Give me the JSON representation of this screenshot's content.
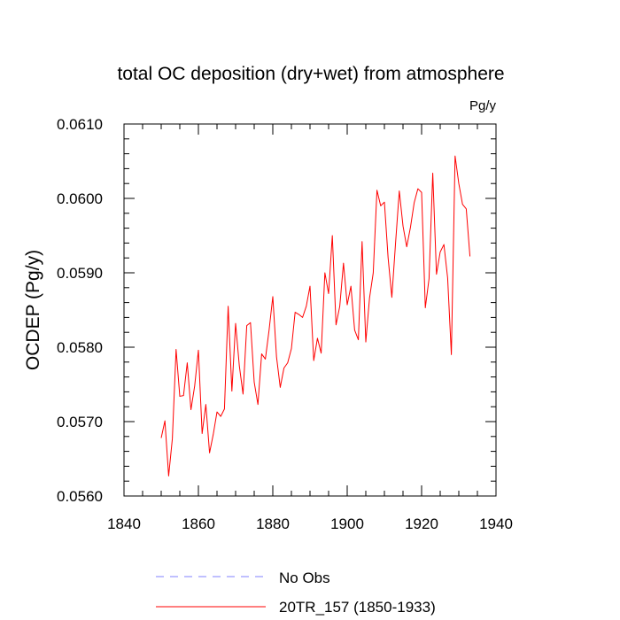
{
  "chart_data": {
    "type": "line",
    "title": "total OC deposition (dry+wet) from atmosphere",
    "units_label": "Pg/y",
    "xlabel": "",
    "ylabel": "OCDEP  (Pg/y)",
    "xlim": [
      1840,
      1940
    ],
    "ylim": [
      0.056,
      0.061
    ],
    "x_ticks": [
      1840,
      1860,
      1880,
      1900,
      1920,
      1940
    ],
    "x_tick_labels": [
      "1840",
      "1860",
      "1880",
      "1900",
      "1920",
      "1940"
    ],
    "y_ticks": [
      0.056,
      0.057,
      0.058,
      0.059,
      0.06,
      0.061
    ],
    "y_tick_labels": [
      "0.0560",
      "0.0570",
      "0.0580",
      "0.0590",
      "0.0600",
      "0.0610"
    ],
    "grid": false,
    "legend_position": "bottom",
    "legend": [
      {
        "label": "No Obs",
        "color": "#8080ff",
        "style": "dashed"
      },
      {
        "label": "20TR_157 (1850-1933)",
        "color": "#ff0000",
        "style": "solid"
      }
    ],
    "series": [
      {
        "name": "20TR_157 (1850-1933)",
        "color": "#ff0000",
        "x": [
          1850,
          1851,
          1852,
          1853,
          1854,
          1855,
          1856,
          1857,
          1858,
          1859,
          1860,
          1861,
          1862,
          1863,
          1864,
          1865,
          1866,
          1867,
          1868,
          1869,
          1870,
          1871,
          1872,
          1873,
          1874,
          1875,
          1876,
          1877,
          1878,
          1879,
          1880,
          1881,
          1882,
          1883,
          1884,
          1885,
          1886,
          1887,
          1888,
          1889,
          1890,
          1891,
          1892,
          1893,
          1894,
          1895,
          1896,
          1897,
          1898,
          1899,
          1900,
          1901,
          1902,
          1903,
          1904,
          1905,
          1906,
          1907,
          1908,
          1909,
          1910,
          1911,
          1912,
          1913,
          1914,
          1915,
          1916,
          1917,
          1918,
          1919,
          1920,
          1921,
          1922,
          1923,
          1924,
          1925,
          1926,
          1927,
          1928,
          1929,
          1930,
          1931,
          1932,
          1933
        ],
        "values": [
          0.05678,
          0.05701,
          0.05627,
          0.05677,
          0.05797,
          0.05734,
          0.05735,
          0.05779,
          0.05716,
          0.05748,
          0.05796,
          0.05684,
          0.05723,
          0.05658,
          0.05683,
          0.05713,
          0.05707,
          0.05717,
          0.05855,
          0.05741,
          0.05832,
          0.05775,
          0.05737,
          0.05829,
          0.05833,
          0.05753,
          0.05723,
          0.05791,
          0.05784,
          0.05823,
          0.05868,
          0.05787,
          0.05746,
          0.05772,
          0.05779,
          0.05798,
          0.05847,
          0.05844,
          0.0584,
          0.05855,
          0.05882,
          0.05782,
          0.05812,
          0.05792,
          0.059,
          0.05872,
          0.0595,
          0.0583,
          0.05855,
          0.05913,
          0.05857,
          0.05882,
          0.05823,
          0.0581,
          0.05942,
          0.05807,
          0.05866,
          0.059,
          0.06011,
          0.0599,
          0.05995,
          0.0592,
          0.05867,
          0.0594,
          0.0601,
          0.05963,
          0.05935,
          0.05961,
          0.05994,
          0.06013,
          0.06008,
          0.05853,
          0.05892,
          0.06034,
          0.05898,
          0.05928,
          0.05938,
          0.05893,
          0.0579,
          0.06057,
          0.0602,
          0.05992,
          0.05986,
          0.05922
        ]
      }
    ]
  }
}
